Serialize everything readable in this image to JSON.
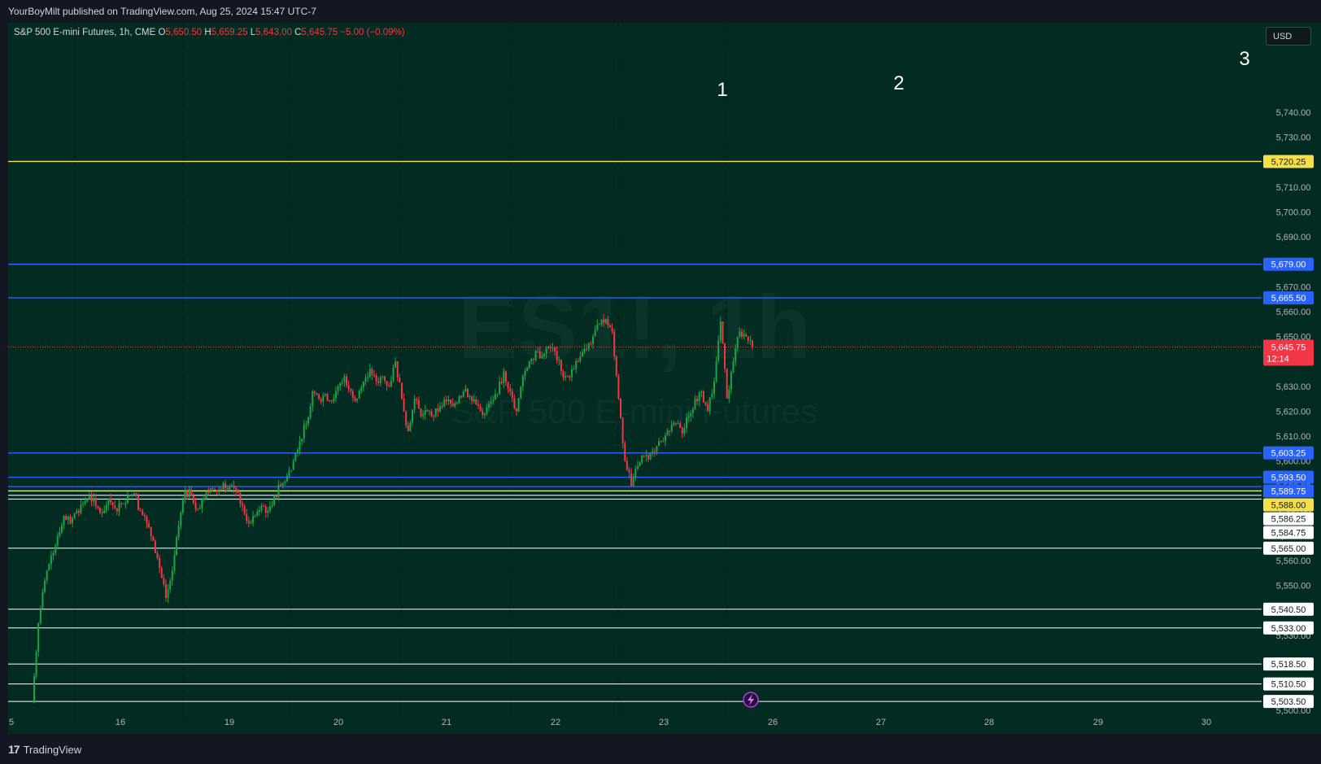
{
  "header": {
    "publisher": "YourBoyMilt published on TradingView.com, Aug 25, 2024 15:47 UTC-7"
  },
  "footer": {
    "brand": "TradingView",
    "logo": "tradingview-logo"
  },
  "legend": {
    "title": "S&P 500 E-mini Futures, 1h, CME",
    "open_label": "O",
    "open": "5,650.50",
    "high_label": "H",
    "high": "5,659.25",
    "low_label": "L",
    "low": "5,643.00",
    "close_label": "C",
    "close": "5,645.75",
    "change": "−5.00 (−0.09%)"
  },
  "currency": "USD",
  "watermark": {
    "symbol": "ES1!, 1h",
    "name": "S&P 500 E-mini Futures"
  },
  "colors": {
    "background": "#022c22",
    "up": "#26a69a",
    "up_candle": "#1fa34a",
    "down_candle": "#f23645",
    "blue_line": "#2962ff",
    "yellow_line": "#f5e04a",
    "white_line": "#ffffff",
    "last_price": "#f23645"
  },
  "chart_data": {
    "type": "candlestick",
    "timeframe": "1h",
    "x_ticks": [
      "5",
      "16",
      "19",
      "20",
      "21",
      "22",
      "23",
      "26",
      "27",
      "28",
      "29",
      "30"
    ],
    "y_ticks": [
      "5,500.00",
      "5,510.00",
      "5,520.00",
      "5,530.00",
      "5,540.00",
      "5,550.00",
      "5,560.00",
      "5,570.00",
      "5,580.00",
      "5,590.00",
      "5,600.00",
      "5,610.00",
      "5,620.00",
      "5,630.00",
      "5,640.00",
      "5,650.00",
      "5,660.00",
      "5,670.00",
      "5,680.00",
      "5,690.00",
      "5,700.00",
      "5,710.00",
      "5,720.00",
      "5,730.00",
      "5,740.00"
    ],
    "ylim": [
      5497,
      5772
    ],
    "annotations": [
      "1",
      "2",
      "3"
    ],
    "last_price": {
      "value": 5645.75,
      "label": "5,645.75",
      "countdown": "12:14"
    },
    "levels": [
      {
        "value": 5720.25,
        "label": "5,720.25",
        "color": "yellow"
      },
      {
        "value": 5679.0,
        "label": "5,679.00",
        "color": "blue"
      },
      {
        "value": 5665.5,
        "label": "5,665.50",
        "color": "blue"
      },
      {
        "value": 5603.25,
        "label": "5,603.25",
        "color": "blue"
      },
      {
        "value": 5593.5,
        "label": "5,593.50",
        "color": "blue"
      },
      {
        "value": 5589.75,
        "label": "5,589.75",
        "color": "blue"
      },
      {
        "value": 5588.0,
        "label": "5,588.00",
        "color": "yellow"
      },
      {
        "value": 5586.25,
        "label": "5,586.25",
        "color": "white"
      },
      {
        "value": 5584.75,
        "label": "5,584.75",
        "color": "white"
      },
      {
        "value": 5565.0,
        "label": "5,565.00",
        "color": "white"
      },
      {
        "value": 5540.5,
        "label": "5,540.50",
        "color": "white"
      },
      {
        "value": 5533.0,
        "label": "5,533.00",
        "color": "white"
      },
      {
        "value": 5518.5,
        "label": "5,518.50",
        "color": "white"
      },
      {
        "value": 5510.5,
        "label": "5,510.50",
        "color": "white"
      },
      {
        "value": 5503.5,
        "label": "5,503.50",
        "color": "white"
      }
    ],
    "path": [
      [
        5503,
        5535
      ],
      [
        5535,
        5552
      ],
      [
        5552,
        5562
      ],
      [
        5562,
        5570
      ],
      [
        5570,
        5578
      ],
      [
        5578,
        5575
      ],
      [
        5575,
        5580
      ],
      [
        5580,
        5583
      ],
      [
        5583,
        5586
      ],
      [
        5586,
        5582
      ],
      [
        5582,
        5579
      ],
      [
        5579,
        5585
      ],
      [
        5585,
        5581
      ],
      [
        5581,
        5583
      ],
      [
        5583,
        5586
      ],
      [
        5586,
        5587
      ],
      [
        5587,
        5580
      ],
      [
        5580,
        5575
      ],
      [
        5575,
        5568
      ],
      [
        5568,
        5557
      ],
      [
        5557,
        5545
      ],
      [
        5545,
        5556
      ],
      [
        5556,
        5574
      ],
      [
        5574,
        5588
      ],
      [
        5588,
        5586
      ],
      [
        5586,
        5581
      ],
      [
        5581,
        5585
      ],
      [
        5585,
        5589
      ],
      [
        5589,
        5588
      ],
      [
        5588,
        5591
      ],
      [
        5591,
        5590
      ],
      [
        5590,
        5588
      ],
      [
        5588,
        5582
      ],
      [
        5582,
        5575
      ],
      [
        5575,
        5578
      ],
      [
        5578,
        5582
      ],
      [
        5582,
        5580
      ],
      [
        5580,
        5586
      ],
      [
        5586,
        5590
      ],
      [
        5590,
        5594
      ],
      [
        5594,
        5600
      ],
      [
        5600,
        5608
      ],
      [
        5608,
        5615
      ],
      [
        5615,
        5628
      ],
      [
        5628,
        5625
      ],
      [
        5625,
        5627
      ],
      [
        5627,
        5624
      ],
      [
        5624,
        5630
      ],
      [
        5630,
        5634
      ],
      [
        5634,
        5628
      ],
      [
        5628,
        5625
      ],
      [
        5625,
        5632
      ],
      [
        5632,
        5637
      ],
      [
        5637,
        5632
      ],
      [
        5632,
        5634
      ],
      [
        5634,
        5630
      ],
      [
        5630,
        5640
      ],
      [
        5640,
        5625
      ],
      [
        5625,
        5612
      ],
      [
        5612,
        5625
      ],
      [
        5625,
        5618
      ],
      [
        5618,
        5620
      ],
      [
        5620,
        5618
      ],
      [
        5618,
        5622
      ],
      [
        5622,
        5624
      ],
      [
        5624,
        5622
      ],
      [
        5622,
        5626
      ],
      [
        5626,
        5629
      ],
      [
        5629,
        5624
      ],
      [
        5624,
        5622
      ],
      [
        5622,
        5619
      ],
      [
        5619,
        5624
      ],
      [
        5624,
        5627
      ],
      [
        5627,
        5636
      ],
      [
        5636,
        5628
      ],
      [
        5628,
        5620
      ],
      [
        5620,
        5634
      ],
      [
        5634,
        5640
      ],
      [
        5640,
        5644
      ],
      [
        5644,
        5642
      ],
      [
        5642,
        5646
      ],
      [
        5646,
        5644
      ],
      [
        5644,
        5636
      ],
      [
        5636,
        5634
      ],
      [
        5634,
        5637
      ],
      [
        5637,
        5642
      ],
      [
        5642,
        5645
      ],
      [
        5645,
        5650
      ],
      [
        5650,
        5655
      ],
      [
        5655,
        5657
      ],
      [
        5657,
        5652
      ],
      [
        5652,
        5625
      ],
      [
        5625,
        5600
      ],
      [
        5600,
        5590
      ],
      [
        5590,
        5598
      ],
      [
        5598,
        5602
      ],
      [
        5602,
        5603
      ],
      [
        5603,
        5606
      ],
      [
        5606,
        5608
      ],
      [
        5608,
        5612
      ],
      [
        5612,
        5615
      ],
      [
        5615,
        5611
      ],
      [
        5611,
        5618
      ],
      [
        5618,
        5625
      ],
      [
        5625,
        5628
      ],
      [
        5628,
        5620
      ],
      [
        5620,
        5632
      ],
      [
        5632,
        5656
      ],
      [
        5656,
        5625
      ],
      [
        5625,
        5640
      ],
      [
        5640,
        5652
      ],
      [
        5652,
        5650
      ],
      [
        5650,
        5645.75
      ]
    ]
  }
}
